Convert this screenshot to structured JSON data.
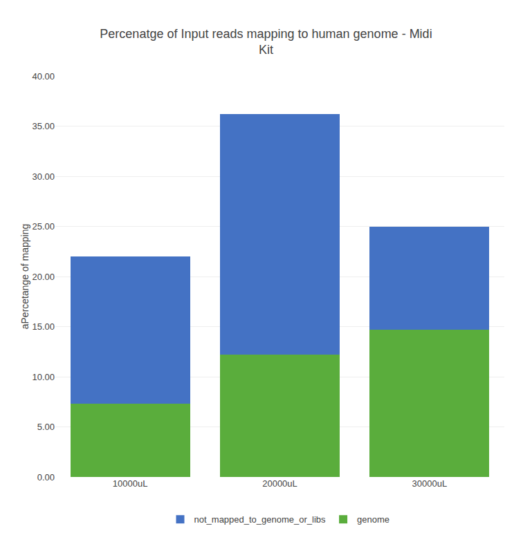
{
  "chart_data": {
    "type": "bar",
    "stacked": true,
    "title": "Percenatge of Input reads mapping to human genome - Midi\nKit",
    "ylabel": "aPercetange of mapping",
    "categories": [
      "10000uL",
      "20000uL",
      "30000uL"
    ],
    "series": [
      {
        "name": "genome",
        "color": "#5aad3c",
        "values": [
          7.3,
          12.2,
          14.7
        ]
      },
      {
        "name": "not_mapped_to_genome_or_libs",
        "color": "#4472c4",
        "values": [
          14.7,
          24.0,
          10.3
        ]
      }
    ],
    "ylim": [
      0,
      40
    ],
    "yticks": [
      {
        "value": 0,
        "label": "0.00"
      },
      {
        "value": 5,
        "label": "5.00"
      },
      {
        "value": 10,
        "label": "10.00"
      },
      {
        "value": 15,
        "label": "15.00"
      },
      {
        "value": 20,
        "label": "20.00"
      },
      {
        "value": 25,
        "label": "25.00"
      },
      {
        "value": 30,
        "label": "30.00"
      },
      {
        "value": 35,
        "label": "35.00"
      },
      {
        "value": 40,
        "label": "40.00"
      }
    ],
    "grid": true,
    "legend": "bottom"
  }
}
